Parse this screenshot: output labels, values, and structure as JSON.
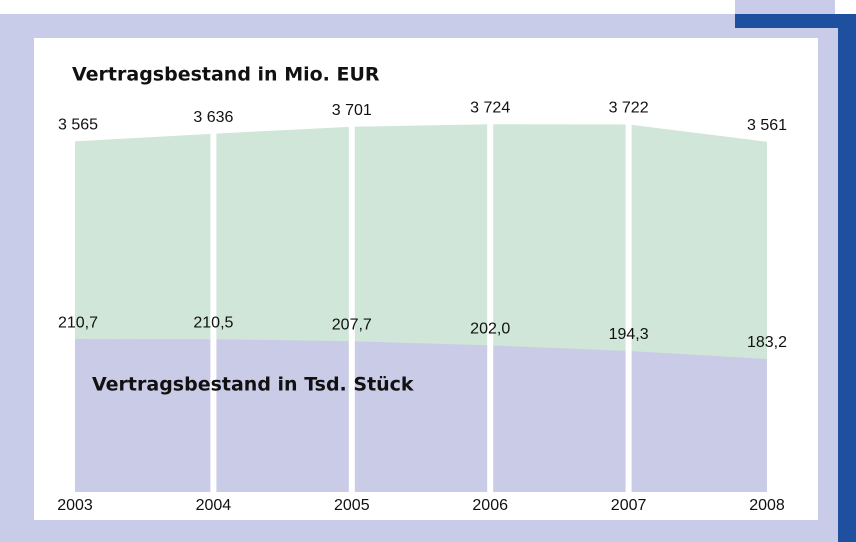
{
  "chart_data": {
    "type": "area",
    "title": "Vertragsbestand in Mio. EUR",
    "subtitle": "Vertragsbestand in Tsd. Stück",
    "categories": [
      "2003",
      "2004",
      "2005",
      "2006",
      "2007",
      "2008"
    ],
    "series": [
      {
        "name": "Vertragsbestand in Mio. EUR",
        "color": "#cfe6d8",
        "axis": "y2",
        "values": [
          3565,
          3636,
          3701,
          3724,
          3722,
          3561
        ],
        "value_labels": [
          "3 565",
          "3 636",
          "3 701",
          "3 724",
          "3 722",
          "3 561"
        ]
      },
      {
        "name": "Vertragsbestand in Tsd. Stück",
        "color": "#c9cbe7",
        "values": [
          210.7,
          210.5,
          207.7,
          202.0,
          194.3,
          183.2
        ],
        "value_labels": [
          "210,7",
          "210,5",
          "207,7",
          "202,0",
          "194,3",
          "183,2"
        ]
      }
    ],
    "ylim": [
      0,
      540
    ],
    "y2lim": [
      300,
      3950
    ]
  }
}
